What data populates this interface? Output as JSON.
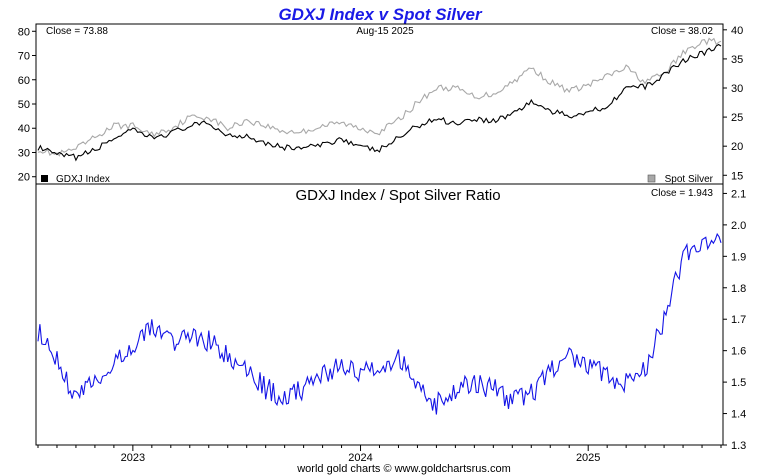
{
  "title": "GDXJ Index v Spot Silver",
  "footer": "world gold charts © www.goldchartsrus.com",
  "colors": {
    "title": "#1a1ae6",
    "gdxj": "#000000",
    "silver": "#a8a8a8",
    "ratio": "#1414e6"
  },
  "top_panel": {
    "close_left": "Close = 73.88",
    "date": "Aug-15  2025",
    "close_right": "Close = 38.02",
    "legend_left": "GDXJ Index",
    "legend_right": "Spot Silver"
  },
  "bottom_panel": {
    "title": "GDXJ Index  /  Spot Silver Ratio",
    "close": "Close = 1.943"
  },
  "chart_data": [
    {
      "type": "line",
      "left_axis": {
        "ylim": [
          17,
          83
        ],
        "ticks": [
          20,
          30,
          40,
          50,
          60,
          70,
          80
        ]
      },
      "right_axis": {
        "ylim": [
          13.5,
          41
        ],
        "ticks": [
          15,
          20,
          25,
          30,
          35,
          40
        ]
      },
      "x": [
        "2022-08",
        "2022-09",
        "2022-10",
        "2022-11",
        "2022-12",
        "2023-01",
        "2023-02",
        "2023-03",
        "2023-04",
        "2023-05",
        "2023-06",
        "2023-07",
        "2023-08",
        "2023-09",
        "2023-10",
        "2023-11",
        "2023-12",
        "2024-01",
        "2024-02",
        "2024-03",
        "2024-04",
        "2024-05",
        "2024-06",
        "2024-07",
        "2024-08",
        "2024-09",
        "2024-10",
        "2024-11",
        "2024-12",
        "2025-01",
        "2025-02",
        "2025-03",
        "2025-04",
        "2025-05",
        "2025-06",
        "2025-07",
        "2025-08"
      ],
      "series": [
        {
          "name": "GDXJ Index",
          "axis": "left",
          "values": [
            32,
            29,
            28,
            31,
            36,
            39,
            36,
            38,
            41,
            42,
            37,
            37,
            34,
            32,
            32,
            33,
            36,
            32,
            31,
            36,
            41,
            44,
            42,
            44,
            43,
            46,
            51,
            47,
            45,
            47,
            49,
            57,
            57,
            62,
            68,
            71,
            73.88
          ]
        },
        {
          "name": "Spot Silver",
          "axis": "right",
          "values": [
            19.5,
            18.5,
            19.5,
            21.5,
            23.5,
            23.5,
            22,
            23,
            25,
            25,
            23,
            24.5,
            23.5,
            22.5,
            22.5,
            23.5,
            24,
            23,
            22.5,
            24.5,
            27.5,
            30,
            30,
            28.5,
            29,
            31,
            33.5,
            31,
            29.5,
            30.5,
            32,
            33.5,
            31,
            32.5,
            36,
            38,
            38.02
          ]
        }
      ]
    },
    {
      "type": "line",
      "title": "GDXJ Index  /  Spot Silver Ratio",
      "ylim": [
        1.3,
        2.13
      ],
      "ticks": [
        1.3,
        1.4,
        1.5,
        1.6,
        1.7,
        1.8,
        1.9,
        2.0,
        2.1
      ],
      "x_ticks": [
        "2023",
        "2024",
        "2025"
      ],
      "x": [
        "2022-08",
        "2022-09",
        "2022-10",
        "2022-11",
        "2022-12",
        "2023-01",
        "2023-02",
        "2023-03",
        "2023-04",
        "2023-05",
        "2023-06",
        "2023-07",
        "2023-08",
        "2023-09",
        "2023-10",
        "2023-11",
        "2023-12",
        "2024-01",
        "2024-02",
        "2024-03",
        "2024-04",
        "2024-05",
        "2024-06",
        "2024-07",
        "2024-08",
        "2024-09",
        "2024-10",
        "2024-11",
        "2024-12",
        "2025-01",
        "2025-02",
        "2025-03",
        "2025-04",
        "2025-05",
        "2025-06",
        "2025-07",
        "2025-08"
      ],
      "series": [
        {
          "name": "GDXJ Index  /  Spot Silver Ratio",
          "values": [
            1.66,
            1.57,
            1.45,
            1.5,
            1.55,
            1.62,
            1.68,
            1.63,
            1.65,
            1.63,
            1.58,
            1.54,
            1.48,
            1.45,
            1.48,
            1.53,
            1.55,
            1.52,
            1.56,
            1.58,
            1.5,
            1.43,
            1.47,
            1.5,
            1.48,
            1.44,
            1.46,
            1.54,
            1.58,
            1.56,
            1.52,
            1.5,
            1.54,
            1.7,
            1.9,
            1.93,
            1.943
          ]
        }
      ]
    }
  ]
}
